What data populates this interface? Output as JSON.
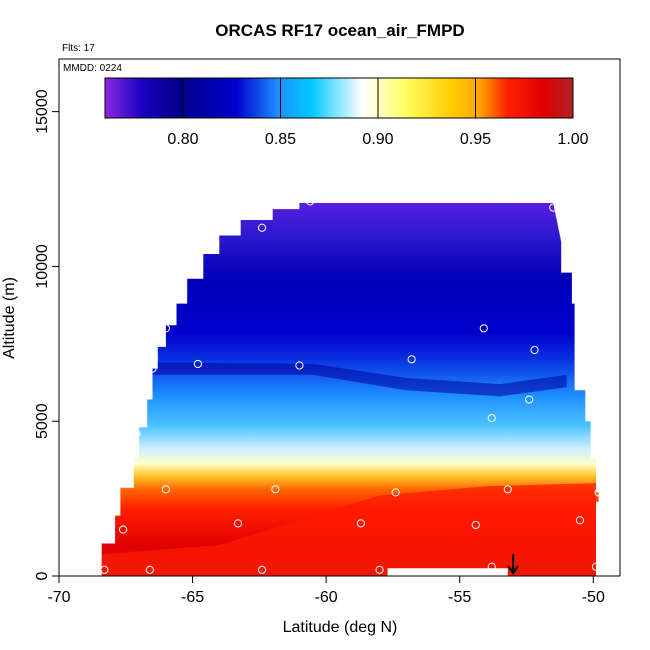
{
  "chart_data": {
    "type": "heatmap",
    "title": "ORCAS RF17 ocean_air_FMPD",
    "annotations": {
      "flights": "Flts: 17",
      "date": "MMDD: 0224"
    },
    "xlabel": "Latitude (deg N)",
    "ylabel": "Altitude (m)",
    "xlim": [
      -70,
      -49
    ],
    "ylim": [
      0,
      16700
    ],
    "x_ticks": [
      -70,
      -65,
      -60,
      -55,
      -50
    ],
    "y_ticks": [
      0,
      5000,
      10000,
      15000
    ],
    "colorbar": {
      "range": [
        0.76,
        1.0
      ],
      "ticks": [
        0.8,
        0.85,
        0.9,
        0.95,
        1.0
      ],
      "tick_labels": [
        "0.80",
        "0.85",
        "0.90",
        "0.95",
        "1.00"
      ],
      "colors": [
        "#8a2be2",
        "#00008b",
        "#0000cd",
        "#00bfff",
        "#ffffff",
        "#ffff66",
        "#ffa500",
        "#ff0000",
        "#b22222"
      ]
    },
    "field_description_by_altitude": [
      {
        "altitude": 12000,
        "value": 0.78
      },
      {
        "altitude": 9000,
        "value": 0.8
      },
      {
        "altitude": 7000,
        "value": 0.82
      },
      {
        "altitude": 5000,
        "value": 0.86
      },
      {
        "altitude": 3500,
        "value": 0.91
      },
      {
        "altitude": 2500,
        "value": 0.96
      },
      {
        "altitude": 1000,
        "value": 0.98
      },
      {
        "altitude": 200,
        "value": 0.99
      }
    ],
    "sample_points": [
      {
        "x": -68.3,
        "y": 200
      },
      {
        "x": -67.6,
        "y": 1500
      },
      {
        "x": -67.1,
        "y": 4600
      },
      {
        "x": -66.0,
        "y": 2800
      },
      {
        "x": -66.6,
        "y": 200
      },
      {
        "x": -66.5,
        "y": 6700
      },
      {
        "x": -66.0,
        "y": 8000
      },
      {
        "x": -64.8,
        "y": 6850
      },
      {
        "x": -63.3,
        "y": 1700
      },
      {
        "x": -62.4,
        "y": 11250
      },
      {
        "x": -62.4,
        "y": 200
      },
      {
        "x": -61.9,
        "y": 2800
      },
      {
        "x": -60.6,
        "y": 12100
      },
      {
        "x": -61.0,
        "y": 6800
      },
      {
        "x": -58.7,
        "y": 1700
      },
      {
        "x": -58.0,
        "y": 200
      },
      {
        "x": -57.4,
        "y": 2700
      },
      {
        "x": -56.8,
        "y": 7000
      },
      {
        "x": -54.4,
        "y": 1650
      },
      {
        "x": -54.1,
        "y": 8000
      },
      {
        "x": -53.8,
        "y": 5100
      },
      {
        "x": -53.8,
        "y": 300
      },
      {
        "x": -53.2,
        "y": 2800
      },
      {
        "x": -52.4,
        "y": 5700
      },
      {
        "x": -52.2,
        "y": 7300
      },
      {
        "x": -51.5,
        "y": 11900
      },
      {
        "x": -50.5,
        "y": 1800
      },
      {
        "x": -49.9,
        "y": 300
      },
      {
        "x": -49.8,
        "y": 2700
      }
    ],
    "arrow_marker": {
      "x": -53.0,
      "y": 700
    }
  }
}
